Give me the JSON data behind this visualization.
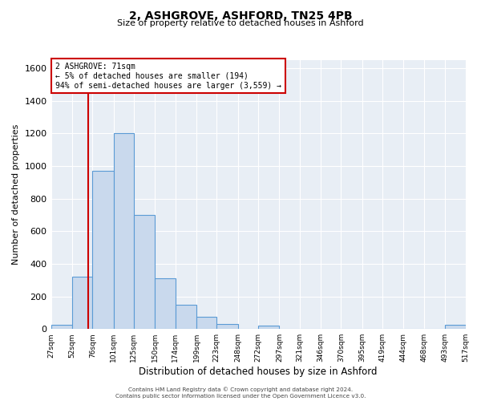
{
  "title": "2, ASHGROVE, ASHFORD, TN25 4PB",
  "subtitle": "Size of property relative to detached houses in Ashford",
  "xlabel": "Distribution of detached houses by size in Ashford",
  "ylabel": "Number of detached properties",
  "annotation_line1": "2 ASHGROVE: 71sqm",
  "annotation_line2": "← 5% of detached houses are smaller (194)",
  "annotation_line3": "94% of semi-detached houses are larger (3,559) →",
  "property_value": 71,
  "bin_edges": [
    27,
    52,
    76,
    101,
    125,
    150,
    174,
    199,
    223,
    248,
    272,
    297,
    321,
    346,
    370,
    395,
    419,
    444,
    468,
    493,
    517
  ],
  "bin_heights": [
    25,
    320,
    970,
    1200,
    700,
    310,
    150,
    75,
    30,
    0,
    20,
    0,
    0,
    0,
    0,
    0,
    0,
    0,
    0,
    25
  ],
  "bar_facecolor": "#c9d9ed",
  "bar_edgecolor": "#5b9bd5",
  "vline_color": "#cc0000",
  "vline_x": 71,
  "annotation_box_color": "#cc0000",
  "background_color": "#e8eef5",
  "ylim": [
    0,
    1650
  ],
  "yticks": [
    0,
    200,
    400,
    600,
    800,
    1000,
    1200,
    1400,
    1600
  ],
  "footer1": "Contains HM Land Registry data © Crown copyright and database right 2024.",
  "footer2": "Contains public sector information licensed under the Open Government Licence v3.0."
}
